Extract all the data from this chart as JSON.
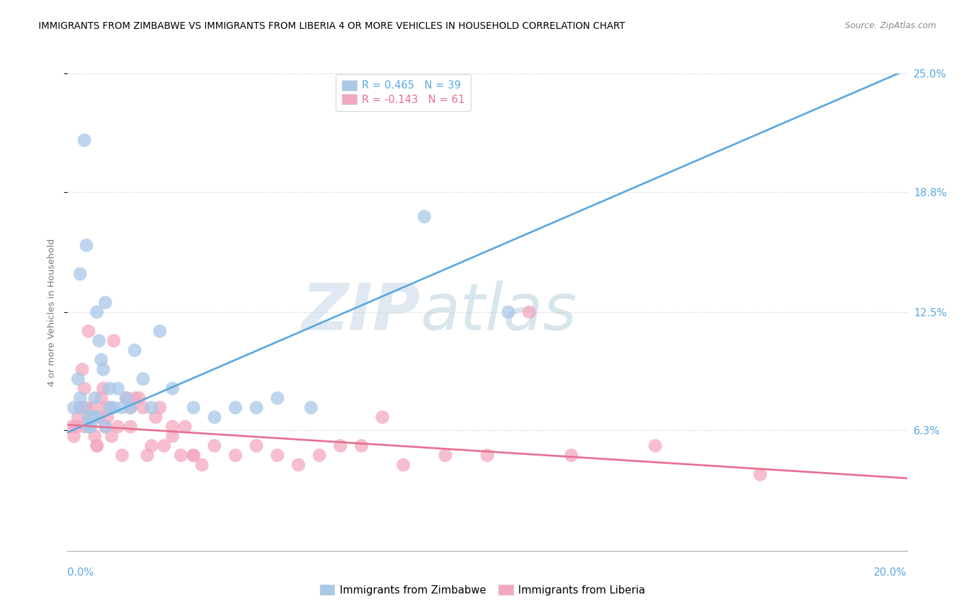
{
  "title": "IMMIGRANTS FROM ZIMBABWE VS IMMIGRANTS FROM LIBERIA 4 OR MORE VEHICLES IN HOUSEHOLD CORRELATION CHART",
  "source": "Source: ZipAtlas.com",
  "watermark_zip": "ZIP",
  "watermark_atlas": "atlas",
  "zimbabwe_color": "#A8C8E8",
  "liberia_color": "#F4A8C0",
  "zimbabwe_line_color": "#5BA8E0",
  "liberia_line_color": "#E87090",
  "R_zimbabwe": 0.465,
  "N_zimbabwe": 39,
  "R_liberia": -0.143,
  "N_liberia": 61,
  "xlim": [
    0,
    20
  ],
  "ylim": [
    0,
    25
  ],
  "yticks": [
    6.3,
    12.5,
    18.8,
    25.0
  ],
  "ylabel_labels": [
    "6.3%",
    "12.5%",
    "18.8%",
    "25.0%"
  ],
  "zim_line_x0": 0.0,
  "zim_line_y0": 6.2,
  "zim_line_x1": 20.0,
  "zim_line_y1": 25.2,
  "lib_line_x0": 0.0,
  "lib_line_y0": 6.6,
  "lib_line_x1": 20.0,
  "lib_line_y1": 3.8,
  "zimbabwe_x": [
    0.15,
    0.25,
    0.3,
    0.35,
    0.4,
    0.45,
    0.5,
    0.55,
    0.6,
    0.65,
    0.7,
    0.75,
    0.8,
    0.85,
    0.9,
    1.0,
    1.0,
    1.1,
    1.2,
    1.4,
    1.5,
    1.6,
    1.8,
    2.0,
    2.2,
    2.5,
    3.0,
    3.5,
    4.0,
    4.5,
    5.0,
    5.8,
    0.3,
    0.5,
    0.7,
    0.9,
    1.3,
    8.5,
    10.5
  ],
  "zimbabwe_y": [
    7.5,
    9.0,
    8.0,
    7.5,
    21.5,
    16.0,
    7.0,
    6.5,
    7.0,
    8.0,
    12.5,
    11.0,
    10.0,
    9.5,
    13.0,
    7.5,
    8.5,
    7.5,
    8.5,
    8.0,
    7.5,
    10.5,
    9.0,
    7.5,
    11.5,
    8.5,
    7.5,
    7.0,
    7.5,
    7.5,
    8.0,
    7.5,
    14.5,
    6.5,
    7.0,
    6.5,
    7.5,
    17.5,
    12.5
  ],
  "liberia_x": [
    0.1,
    0.15,
    0.2,
    0.25,
    0.3,
    0.35,
    0.4,
    0.45,
    0.5,
    0.55,
    0.6,
    0.65,
    0.7,
    0.75,
    0.8,
    0.85,
    0.9,
    0.95,
    1.0,
    1.05,
    1.1,
    1.2,
    1.3,
    1.4,
    1.5,
    1.6,
    1.7,
    1.8,
    1.9,
    2.0,
    2.1,
    2.2,
    2.3,
    2.5,
    2.7,
    2.8,
    3.0,
    3.2,
    3.5,
    4.0,
    4.5,
    5.0,
    5.5,
    6.0,
    6.5,
    7.0,
    8.0,
    9.0,
    10.0,
    12.0,
    0.4,
    0.5,
    0.7,
    0.9,
    1.5,
    2.5,
    3.0,
    14.0,
    16.5,
    7.5,
    11.0
  ],
  "liberia_y": [
    6.5,
    6.0,
    6.5,
    7.0,
    7.5,
    9.5,
    8.5,
    7.5,
    7.0,
    6.5,
    7.5,
    6.0,
    5.5,
    7.0,
    8.0,
    8.5,
    7.5,
    7.0,
    7.5,
    6.0,
    11.0,
    6.5,
    5.0,
    8.0,
    7.5,
    8.0,
    8.0,
    7.5,
    5.0,
    5.5,
    7.0,
    7.5,
    5.5,
    6.5,
    5.0,
    6.5,
    5.0,
    4.5,
    5.5,
    5.0,
    5.5,
    5.0,
    4.5,
    5.0,
    5.5,
    5.5,
    4.5,
    5.0,
    5.0,
    5.0,
    6.5,
    11.5,
    5.5,
    6.5,
    6.5,
    6.0,
    5.0,
    5.5,
    4.0,
    7.0,
    12.5
  ]
}
